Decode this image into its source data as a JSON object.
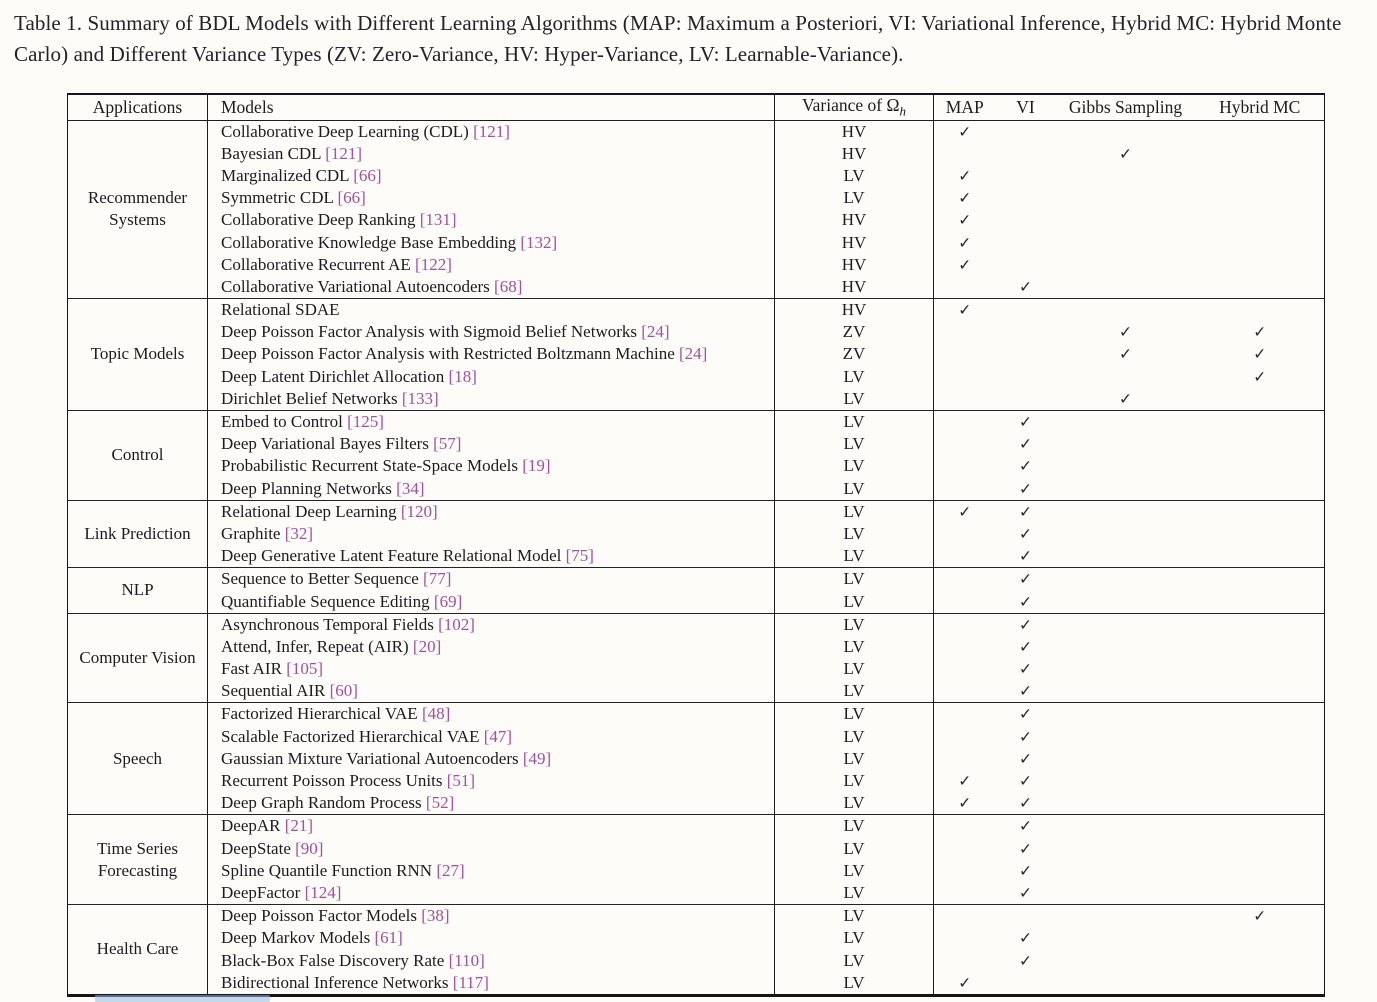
{
  "caption": "Table 1.  Summary of BDL Models with Different Learning Algorithms (MAP: Maximum a Posteriori, VI: Variational Inference, Hybrid MC: Hybrid Monte Carlo) and Different Variance Types (ZV: Zero-Variance, HV: Hyper-Variance, LV: Learnable-Variance).",
  "header": {
    "applications": "Applications",
    "models": "Models",
    "variance_prefix": "Variance of Ω",
    "variance_sub": "h",
    "map": "MAP",
    "vi": "VI",
    "gibbs": "Gibbs Sampling",
    "hybrid_mc": "Hybrid MC"
  },
  "check_glyph": "✓",
  "colors": {
    "citation": "#a2519c",
    "text": "#1c1c1e",
    "rule": "#1d1d1d",
    "artifact_blue": "#94b8e7"
  },
  "sections": [
    {
      "application": "Recommender Systems",
      "rows": [
        {
          "model": "Collaborative Deep Learning (CDL)",
          "cite": "121",
          "variance": "HV",
          "checks": {
            "map": true,
            "vi": false,
            "gibbs": false,
            "hybrid_mc": false
          }
        },
        {
          "model": "Bayesian CDL",
          "cite": "121",
          "variance": "HV",
          "checks": {
            "map": false,
            "vi": false,
            "gibbs": true,
            "hybrid_mc": false
          }
        },
        {
          "model": "Marginalized CDL",
          "cite": "66",
          "variance": "LV",
          "checks": {
            "map": true,
            "vi": false,
            "gibbs": false,
            "hybrid_mc": false
          }
        },
        {
          "model": "Symmetric CDL",
          "cite": "66",
          "variance": "LV",
          "checks": {
            "map": true,
            "vi": false,
            "gibbs": false,
            "hybrid_mc": false
          }
        },
        {
          "model": "Collaborative Deep Ranking",
          "cite": "131",
          "variance": "HV",
          "checks": {
            "map": true,
            "vi": false,
            "gibbs": false,
            "hybrid_mc": false
          }
        },
        {
          "model": "Collaborative Knowledge Base Embedding",
          "cite": "132",
          "variance": "HV",
          "checks": {
            "map": true,
            "vi": false,
            "gibbs": false,
            "hybrid_mc": false
          }
        },
        {
          "model": "Collaborative Recurrent AE",
          "cite": "122",
          "variance": "HV",
          "checks": {
            "map": true,
            "vi": false,
            "gibbs": false,
            "hybrid_mc": false
          }
        },
        {
          "model": "Collaborative Variational Autoencoders",
          "cite": "68",
          "variance": "HV",
          "checks": {
            "map": false,
            "vi": true,
            "gibbs": false,
            "hybrid_mc": false
          }
        }
      ]
    },
    {
      "application": "Topic Models",
      "rows": [
        {
          "model": "Relational SDAE",
          "cite": null,
          "variance": "HV",
          "checks": {
            "map": true,
            "vi": false,
            "gibbs": false,
            "hybrid_mc": false
          }
        },
        {
          "model": "Deep Poisson Factor Analysis with Sigmoid Belief Networks",
          "cite": "24",
          "variance": "ZV",
          "checks": {
            "map": false,
            "vi": false,
            "gibbs": true,
            "hybrid_mc": true
          }
        },
        {
          "model": "Deep Poisson Factor Analysis with Restricted Boltzmann Machine",
          "cite": "24",
          "variance": "ZV",
          "checks": {
            "map": false,
            "vi": false,
            "gibbs": true,
            "hybrid_mc": true
          }
        },
        {
          "model": "Deep Latent Dirichlet Allocation",
          "cite": "18",
          "variance": "LV",
          "checks": {
            "map": false,
            "vi": false,
            "gibbs": false,
            "hybrid_mc": true
          }
        },
        {
          "model": "Dirichlet Belief Networks",
          "cite": "133",
          "variance": "LV",
          "checks": {
            "map": false,
            "vi": false,
            "gibbs": true,
            "hybrid_mc": false
          }
        }
      ]
    },
    {
      "application": "Control",
      "rows": [
        {
          "model": "Embed to Control",
          "cite": "125",
          "variance": "LV",
          "checks": {
            "map": false,
            "vi": true,
            "gibbs": false,
            "hybrid_mc": false
          }
        },
        {
          "model": "Deep Variational Bayes Filters",
          "cite": "57",
          "variance": "LV",
          "checks": {
            "map": false,
            "vi": true,
            "gibbs": false,
            "hybrid_mc": false
          }
        },
        {
          "model": "Probabilistic Recurrent State-Space Models",
          "cite": "19",
          "variance": "LV",
          "checks": {
            "map": false,
            "vi": true,
            "gibbs": false,
            "hybrid_mc": false
          }
        },
        {
          "model": "Deep Planning Networks",
          "cite": "34",
          "variance": "LV",
          "checks": {
            "map": false,
            "vi": true,
            "gibbs": false,
            "hybrid_mc": false
          }
        }
      ]
    },
    {
      "application": "Link Prediction",
      "rows": [
        {
          "model": "Relational Deep Learning",
          "cite": "120",
          "variance": "LV",
          "checks": {
            "map": true,
            "vi": true,
            "gibbs": false,
            "hybrid_mc": false
          }
        },
        {
          "model": "Graphite",
          "cite": "32",
          "variance": "LV",
          "checks": {
            "map": false,
            "vi": true,
            "gibbs": false,
            "hybrid_mc": false
          }
        },
        {
          "model": "Deep Generative Latent Feature Relational Model",
          "cite": "75",
          "variance": "LV",
          "checks": {
            "map": false,
            "vi": true,
            "gibbs": false,
            "hybrid_mc": false
          }
        }
      ]
    },
    {
      "application": "NLP",
      "rows": [
        {
          "model": "Sequence to Better Sequence",
          "cite": "77",
          "variance": "LV",
          "checks": {
            "map": false,
            "vi": true,
            "gibbs": false,
            "hybrid_mc": false
          }
        },
        {
          "model": "Quantifiable Sequence Editing",
          "cite": "69",
          "variance": "LV",
          "checks": {
            "map": false,
            "vi": true,
            "gibbs": false,
            "hybrid_mc": false
          }
        }
      ]
    },
    {
      "application": "Computer Vision",
      "rows": [
        {
          "model": "Asynchronous Temporal Fields",
          "cite": "102",
          "variance": "LV",
          "checks": {
            "map": false,
            "vi": true,
            "gibbs": false,
            "hybrid_mc": false
          }
        },
        {
          "model": "Attend, Infer, Repeat (AIR)",
          "cite": "20",
          "variance": "LV",
          "checks": {
            "map": false,
            "vi": true,
            "gibbs": false,
            "hybrid_mc": false
          }
        },
        {
          "model": "Fast AIR",
          "cite": "105",
          "variance": "LV",
          "checks": {
            "map": false,
            "vi": true,
            "gibbs": false,
            "hybrid_mc": false
          }
        },
        {
          "model": "Sequential AIR",
          "cite": "60",
          "variance": "LV",
          "checks": {
            "map": false,
            "vi": true,
            "gibbs": false,
            "hybrid_mc": false
          }
        }
      ]
    },
    {
      "application": "Speech",
      "rows": [
        {
          "model": "Factorized Hierarchical VAE",
          "cite": "48",
          "variance": "LV",
          "checks": {
            "map": false,
            "vi": true,
            "gibbs": false,
            "hybrid_mc": false
          }
        },
        {
          "model": "Scalable Factorized Hierarchical VAE",
          "cite": "47",
          "variance": "LV",
          "checks": {
            "map": false,
            "vi": true,
            "gibbs": false,
            "hybrid_mc": false
          }
        },
        {
          "model": "Gaussian Mixture Variational Autoencoders",
          "cite": "49",
          "variance": "LV",
          "checks": {
            "map": false,
            "vi": true,
            "gibbs": false,
            "hybrid_mc": false
          }
        },
        {
          "model": "Recurrent Poisson Process Units",
          "cite": "51",
          "variance": "LV",
          "checks": {
            "map": true,
            "vi": true,
            "gibbs": false,
            "hybrid_mc": false
          }
        },
        {
          "model": "Deep Graph Random Process",
          "cite": "52",
          "variance": "LV",
          "checks": {
            "map": true,
            "vi": true,
            "gibbs": false,
            "hybrid_mc": false
          }
        }
      ]
    },
    {
      "application": "Time Series Forecasting",
      "rows": [
        {
          "model": "DeepAR",
          "cite": "21",
          "variance": "LV",
          "checks": {
            "map": false,
            "vi": true,
            "gibbs": false,
            "hybrid_mc": false
          }
        },
        {
          "model": "DeepState",
          "cite": "90",
          "variance": "LV",
          "checks": {
            "map": false,
            "vi": true,
            "gibbs": false,
            "hybrid_mc": false
          }
        },
        {
          "model": "Spline Quantile Function RNN",
          "cite": "27",
          "variance": "LV",
          "checks": {
            "map": false,
            "vi": true,
            "gibbs": false,
            "hybrid_mc": false
          }
        },
        {
          "model": "DeepFactor",
          "cite": "124",
          "variance": "LV",
          "checks": {
            "map": false,
            "vi": true,
            "gibbs": false,
            "hybrid_mc": false
          }
        }
      ]
    },
    {
      "application": "Health Care",
      "rows": [
        {
          "model": "Deep Poisson Factor Models",
          "cite": "38",
          "variance": "LV",
          "checks": {
            "map": false,
            "vi": false,
            "gibbs": false,
            "hybrid_mc": true
          }
        },
        {
          "model": "Deep Markov Models",
          "cite": "61",
          "variance": "LV",
          "checks": {
            "map": false,
            "vi": true,
            "gibbs": false,
            "hybrid_mc": false
          }
        },
        {
          "model": "Black-Box False Discovery Rate",
          "cite": "110",
          "variance": "LV",
          "checks": {
            "map": false,
            "vi": true,
            "gibbs": false,
            "hybrid_mc": false
          }
        },
        {
          "model": "Bidirectional Inference Networks",
          "cite": "117",
          "variance": "LV",
          "checks": {
            "map": true,
            "vi": false,
            "gibbs": false,
            "hybrid_mc": false
          }
        }
      ]
    }
  ]
}
